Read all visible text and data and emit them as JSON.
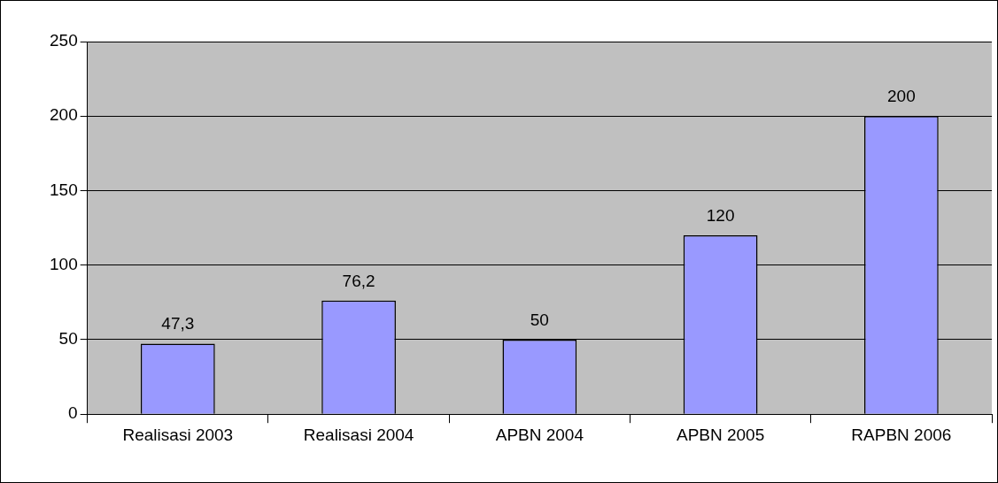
{
  "chart_data": {
    "type": "bar",
    "categories": [
      "Realisasi 2003",
      "Realisasi 2004",
      "APBN 2004",
      "APBN 2005",
      "RAPBN 2006"
    ],
    "values": [
      47.3,
      76.2,
      50,
      120,
      200
    ],
    "value_labels": [
      "47,3",
      "76,2",
      "50",
      "120",
      "200"
    ],
    "color": "#9999ff",
    "ylim": [
      0,
      250
    ],
    "yticks": [
      0,
      50,
      100,
      150,
      200,
      250
    ],
    "grid": "y",
    "legend": false
  }
}
